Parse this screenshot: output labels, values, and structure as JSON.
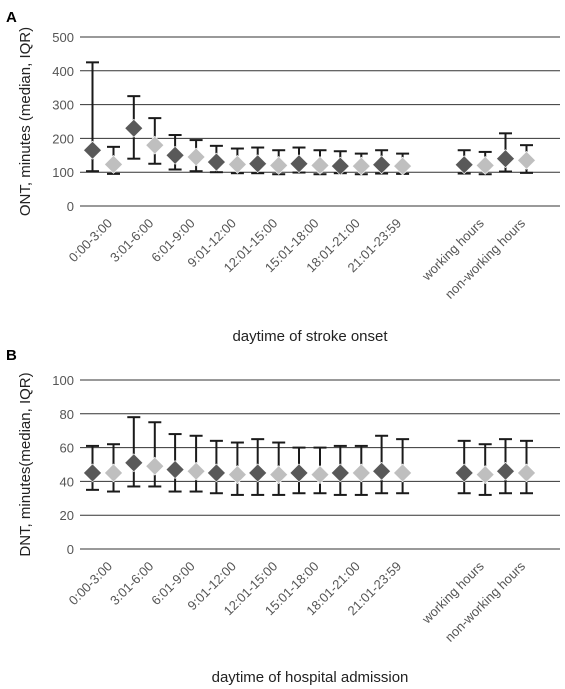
{
  "chart_data": [
    {
      "panel_label": "A",
      "type": "scatter",
      "xlabel": "daytime of stroke onset",
      "ylabel": "ONT, minutes (median, IQR)",
      "ylim": [
        0,
        500
      ],
      "yticks": [
        0,
        100,
        200,
        300,
        400,
        500
      ],
      "grid": true,
      "categories": [
        "0:00-3:00",
        "3:01-6:00",
        "6:01-9:00",
        "9:01-12:00",
        "12:01-15:00",
        "15:01-18:00",
        "18:01-21:00",
        "21:01-23:59",
        "",
        "working hours",
        "non-working hours"
      ],
      "series": [
        {
          "color": "#595959",
          "median": [
            165,
            230,
            150,
            130,
            125,
            125,
            118,
            122,
            null,
            122,
            140
          ],
          "q1": [
            103,
            140,
            108,
            100,
            97,
            99,
            97,
            96,
            null,
            96,
            102
          ],
          "q3": [
            425,
            325,
            210,
            178,
            173,
            173,
            162,
            165,
            null,
            165,
            215
          ]
        },
        {
          "color": "#bfbfbf",
          "median": [
            123,
            180,
            145,
            123,
            120,
            120,
            118,
            118,
            null,
            120,
            135
          ],
          "q1": [
            95,
            125,
            103,
            97,
            94,
            94,
            94,
            95,
            null,
            94,
            98
          ],
          "q3": [
            175,
            260,
            195,
            170,
            165,
            165,
            155,
            155,
            null,
            160,
            180
          ]
        }
      ]
    },
    {
      "panel_label": "B",
      "type": "scatter",
      "xlabel": "daytime of hospital admission",
      "ylabel": "DNT, minutes(median, IQR)",
      "ylim": [
        0,
        100
      ],
      "yticks": [
        0,
        20,
        40,
        60,
        80,
        100
      ],
      "grid": true,
      "categories": [
        "0:00-3:00",
        "3:01-6:00",
        "6:01-9:00",
        "9:01-12:00",
        "12:01-15:00",
        "15:01-18:00",
        "18:01-21:00",
        "21:01-23:59",
        "",
        "working hours",
        "non-working hours"
      ],
      "series": [
        {
          "color": "#595959",
          "median": [
            45,
            51,
            47,
            45,
            45,
            45,
            45,
            46,
            null,
            45,
            46
          ],
          "q1": [
            35,
            37,
            34,
            33,
            32,
            33,
            32,
            33,
            null,
            33,
            33
          ],
          "q3": [
            61,
            78,
            68,
            64,
            65,
            60,
            61,
            67,
            null,
            64,
            65
          ]
        },
        {
          "color": "#bfbfbf",
          "median": [
            45,
            49,
            46,
            44,
            44,
            44,
            45,
            45,
            null,
            44,
            45
          ],
          "q1": [
            34,
            37,
            34,
            32,
            32,
            33,
            32,
            33,
            null,
            32,
            33
          ],
          "q3": [
            62,
            75,
            67,
            63,
            63,
            60,
            61,
            65,
            null,
            62,
            64
          ]
        }
      ]
    }
  ]
}
